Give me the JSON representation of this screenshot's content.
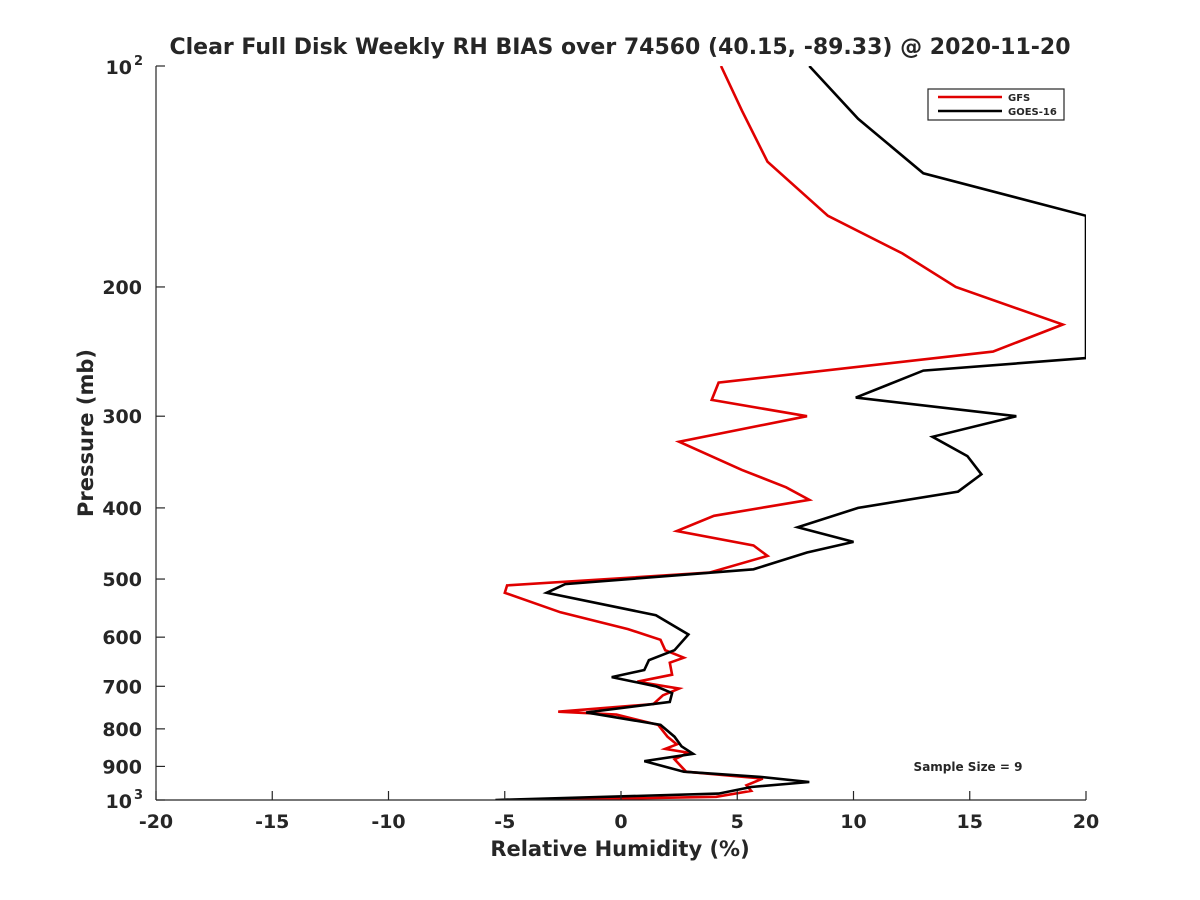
{
  "chart_data": {
    "type": "line",
    "title": "Clear Full Disk Weekly RH BIAS over 74560 (40.15, -89.33) @ 2020-11-20",
    "xlabel": "Relative Humidity (%)",
    "ylabel": "Pressure (mb)",
    "xlim": [
      -20,
      20
    ],
    "ylim": [
      100,
      1000
    ],
    "y_scale": "log",
    "y_reversed": true,
    "x_ticks": [
      -20,
      -15,
      -10,
      -5,
      0,
      5,
      10,
      15,
      20
    ],
    "y_ticks": [
      {
        "value": 100,
        "label": "10",
        "exp": "2"
      },
      {
        "value": 200,
        "label": "200"
      },
      {
        "value": 300,
        "label": "300"
      },
      {
        "value": 400,
        "label": "400"
      },
      {
        "value": 500,
        "label": "500"
      },
      {
        "value": 600,
        "label": "600"
      },
      {
        "value": 700,
        "label": "700"
      },
      {
        "value": 800,
        "label": "800"
      },
      {
        "value": 900,
        "label": "900"
      },
      {
        "value": 1000,
        "label": "10",
        "exp": "3"
      }
    ],
    "legend_position": "top-right",
    "annotation": "Sample Size = 9",
    "series": [
      {
        "name": "GFS",
        "color": "#e00000",
        "points": [
          [
            4.3,
            100
          ],
          [
            5.2,
            115
          ],
          [
            6.3,
            135
          ],
          [
            8.9,
            160
          ],
          [
            12.1,
            180
          ],
          [
            14.4,
            200
          ],
          [
            19.0,
            225
          ],
          [
            16.0,
            245
          ],
          [
            4.2,
            270
          ],
          [
            3.9,
            285
          ],
          [
            8.0,
            300
          ],
          [
            2.5,
            325
          ],
          [
            5.2,
            355
          ],
          [
            7.1,
            375
          ],
          [
            8.1,
            390
          ],
          [
            4.0,
            410
          ],
          [
            2.4,
            430
          ],
          [
            5.7,
            450
          ],
          [
            6.3,
            465
          ],
          [
            3.8,
            490
          ],
          [
            -4.9,
            510
          ],
          [
            -5.0,
            522
          ],
          [
            -2.6,
            555
          ],
          [
            0.3,
            585
          ],
          [
            1.7,
            605
          ],
          [
            1.9,
            625
          ],
          [
            2.7,
            640
          ],
          [
            2.1,
            650
          ],
          [
            2.2,
            675
          ],
          [
            0.7,
            690
          ],
          [
            1.9,
            700
          ],
          [
            2.5,
            705
          ],
          [
            1.8,
            720
          ],
          [
            1.4,
            740
          ],
          [
            -2.7,
            758
          ],
          [
            -0.2,
            765
          ],
          [
            1.6,
            790
          ],
          [
            2.0,
            820
          ],
          [
            2.4,
            840
          ],
          [
            1.9,
            852
          ],
          [
            2.9,
            862
          ],
          [
            2.3,
            880
          ],
          [
            2.8,
            915
          ],
          [
            6.1,
            935
          ],
          [
            5.4,
            955
          ],
          [
            5.6,
            972
          ],
          [
            4.1,
            990
          ],
          [
            -3.4,
            1000
          ]
        ]
      },
      {
        "name": "GOES-16",
        "color": "#000000",
        "points": [
          [
            8.1,
            100
          ],
          [
            10.2,
            118
          ],
          [
            13.0,
            140
          ],
          [
            20.0,
            160
          ],
          [
            20.0,
            250
          ],
          [
            13.0,
            260
          ],
          [
            10.1,
            283
          ],
          [
            17.0,
            300
          ],
          [
            13.4,
            320
          ],
          [
            14.9,
            340
          ],
          [
            15.5,
            360
          ],
          [
            14.5,
            380
          ],
          [
            10.2,
            400
          ],
          [
            7.6,
            425
          ],
          [
            10.0,
            445
          ],
          [
            8.0,
            460
          ],
          [
            5.7,
            485
          ],
          [
            -2.4,
            508
          ],
          [
            -3.2,
            522
          ],
          [
            1.5,
            560
          ],
          [
            2.9,
            595
          ],
          [
            2.3,
            625
          ],
          [
            1.2,
            645
          ],
          [
            1.0,
            665
          ],
          [
            -0.4,
            680
          ],
          [
            1.5,
            700
          ],
          [
            2.2,
            715
          ],
          [
            2.1,
            735
          ],
          [
            -1.5,
            760
          ],
          [
            -0.4,
            770
          ],
          [
            1.7,
            790
          ],
          [
            2.3,
            820
          ],
          [
            2.6,
            845
          ],
          [
            3.1,
            865
          ],
          [
            1.0,
            885
          ],
          [
            2.7,
            915
          ],
          [
            6.0,
            930
          ],
          [
            8.1,
            945
          ],
          [
            5.6,
            960
          ],
          [
            4.2,
            980
          ],
          [
            -5.4,
            1000
          ]
        ]
      }
    ]
  }
}
